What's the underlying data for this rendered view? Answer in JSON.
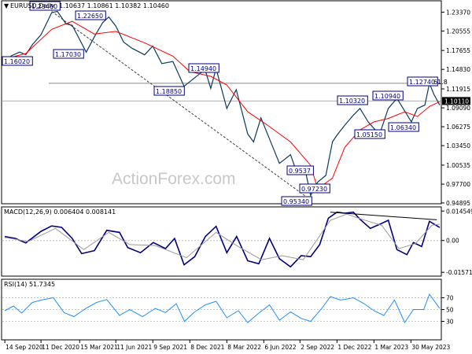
{
  "chart_data": [
    {
      "panel": "price",
      "type": "line",
      "header": {
        "symbol": "EURUSD,Daily",
        "ohlc": "1.10637 1.10861 1.10382 1.10460",
        "arrow": "▼"
      },
      "watermark": "ActionForex.com",
      "y_ticks": [
        "1.23370",
        "1.20555",
        "1.17655",
        "1.14830",
        "1.11915",
        "1.09090",
        "1.06275",
        "1.03450",
        "1.00535",
        "0.97700",
        "0.94895"
      ],
      "y_range": [
        0.9489,
        1.2495
      ],
      "current_price": "1.10110",
      "horizontal_level": 1.1275,
      "fib_label": "61.8",
      "annotations": [
        "1.23480",
        "1.22650",
        "1.17030",
        "1.18850",
        "1.14940",
        "1.10320",
        "1.10940",
        "1.12740",
        "1.05150",
        "1.06340",
        "0.95340",
        "0.97230",
        "0.9537",
        "1.16020"
      ],
      "x_dates": [
        "14 Sep 2020",
        "11 Dec 2020",
        "15 Mar 2021",
        "11 Jun 2021",
        "9 Sep 2021",
        "8 Dec 2021",
        "8 Mar 2022",
        "6 Jun 2022",
        "2 Sep 2022",
        "1 Dec 2022",
        "1 Mar 2023",
        "30 May 2023"
      ],
      "series": [
        {
          "name": "EURUSD,Daily",
          "kind": "close",
          "color": "#0b3a5e",
          "x": [
            "2020-09-14",
            "2020-10-01",
            "2020-10-20",
            "2020-11-04",
            "2020-11-20",
            "2020-12-11",
            "2021-01-06",
            "2021-01-20",
            "2021-02-10",
            "2021-02-25",
            "2021-03-15",
            "2021-03-31",
            "2021-04-20",
            "2021-05-10",
            "2021-05-25",
            "2021-06-11",
            "2021-06-30",
            "2021-07-20",
            "2021-08-20",
            "2021-09-09",
            "2021-10-01",
            "2021-10-28",
            "2021-11-24",
            "2021-12-08",
            "2022-01-14",
            "2022-01-28",
            "2022-02-10",
            "2022-03-08",
            "2022-03-31",
            "2022-04-28",
            "2022-05-12",
            "2022-05-30",
            "2022-06-15",
            "2022-07-14",
            "2022-08-10",
            "2022-08-25",
            "2022-09-14",
            "2022-09-28",
            "2022-10-15",
            "2022-11-04",
            "2022-11-20",
            "2022-12-01",
            "2022-12-20",
            "2023-01-10",
            "2023-01-26",
            "2023-02-15",
            "2023-03-01",
            "2023-03-15",
            "2023-04-05",
            "2023-04-26",
            "2023-05-15",
            "2023-05-31",
            "2023-06-15",
            "2023-07-03",
            "2023-07-14",
            "2023-07-25",
            "2023-08-08"
          ],
          "y": [
            1.1602,
            1.169,
            1.174,
            1.1703,
            1.185,
            1.2,
            1.233,
            1.2348,
            1.216,
            1.214,
            1.193,
            1.174,
            1.197,
            1.218,
            1.2265,
            1.213,
            1.189,
            1.18,
            1.17,
            1.183,
            1.157,
            1.16,
            1.123,
            1.13,
            1.148,
            1.12,
            1.1494,
            1.09,
            1.118,
            1.052,
            1.04,
            1.076,
            1.052,
            1.008,
            1.021,
            0.995,
            1.0,
            0.96,
            0.98,
            0.99,
            1.04,
            1.05,
            1.065,
            1.08,
            1.09,
            1.07,
            1.06,
            1.052,
            1.09,
            1.105,
            1.086,
            1.07,
            1.09,
            1.095,
            1.1274,
            1.111,
            1.095
          ]
        },
        {
          "name": "",
          "kind": "moving-average",
          "color": "#ff0000",
          "x": [
            "2020-09-14",
            "2020-11-04",
            "2021-01-06",
            "2021-02-25",
            "2021-04-20",
            "2021-06-11",
            "2021-08-20",
            "2021-10-28",
            "2021-12-08",
            "2022-01-28",
            "2022-03-08",
            "2022-04-28",
            "2022-06-15",
            "2022-08-10",
            "2022-09-28",
            "2022-10-15",
            "2022-11-20",
            "2022-12-20",
            "2023-01-26",
            "2023-03-01",
            "2023-04-05",
            "2023-05-15",
            "2023-06-15",
            "2023-07-14",
            "2023-08-08"
          ],
          "y": [
            1.164,
            1.172,
            1.208,
            1.22,
            1.201,
            1.205,
            1.188,
            1.168,
            1.145,
            1.138,
            1.125,
            1.085,
            1.065,
            1.04,
            1.005,
            0.97,
            0.986,
            1.032,
            1.058,
            1.07,
            1.075,
            1.085,
            1.078,
            1.093,
            1.1
          ]
        },
        {
          "name": "",
          "kind": "trendline",
          "color": "#404040",
          "dashed": true,
          "x": [
            "2021-01-06",
            "2022-09-28"
          ],
          "y": [
            1.2348,
            0.9534
          ]
        }
      ]
    },
    {
      "panel": "macd",
      "type": "line",
      "title": "MACD(12,26,9) 0.006404 0.008141",
      "y_ticks": [
        "0.014549",
        "0.00",
        "-0.015712"
      ],
      "y_range": [
        -0.0172,
        0.0162
      ],
      "series": [
        {
          "name": "",
          "kind": "macd",
          "color": "#000080",
          "x": [
            "2020-09-14",
            "2020-10-10",
            "2020-11-04",
            "2020-12-11",
            "2021-01-06",
            "2021-01-30",
            "2021-02-25",
            "2021-03-20",
            "2021-04-20",
            "2021-05-20",
            "2021-06-20",
            "2021-07-10",
            "2021-08-10",
            "2021-09-10",
            "2021-10-10",
            "2021-11-01",
            "2021-11-24",
            "2021-12-20",
            "2022-01-15",
            "2022-02-10",
            "2022-03-08",
            "2022-04-01",
            "2022-04-28",
            "2022-05-25",
            "2022-06-20",
            "2022-07-14",
            "2022-08-10",
            "2022-09-05",
            "2022-09-28",
            "2022-10-20",
            "2022-11-10",
            "2022-12-01",
            "2022-12-20",
            "2023-01-10",
            "2023-01-26",
            "2023-02-20",
            "2023-03-15",
            "2023-04-05",
            "2023-04-26",
            "2023-05-20",
            "2023-06-05",
            "2023-06-25",
            "2023-07-14",
            "2023-08-08"
          ],
          "y": [
            0.002,
            0.001,
            -0.0012,
            0.0045,
            0.0072,
            0.0065,
            0.001,
            -0.0065,
            -0.005,
            0.005,
            0.004,
            -0.0035,
            -0.006,
            -0.001,
            -0.004,
            0.001,
            -0.012,
            -0.008,
            0.002,
            0.007,
            -0.006,
            0.002,
            -0.01,
            -0.0115,
            0.001,
            -0.009,
            -0.013,
            -0.0075,
            -0.008,
            -0.002,
            0.011,
            0.014,
            0.0135,
            0.014,
            0.0105,
            0.006,
            0.008,
            0.01,
            -0.0045,
            -0.007,
            -0.001,
            -0.003,
            0.0095,
            0.0064
          ]
        },
        {
          "name": "",
          "kind": "signal",
          "color": "#9a9a9a",
          "x": [
            "2020-09-14",
            "2020-11-10",
            "2021-01-15",
            "2021-03-25",
            "2021-05-25",
            "2021-07-15",
            "2021-09-15",
            "2021-11-30",
            "2022-02-10",
            "2022-04-05",
            "2022-06-01",
            "2022-07-20",
            "2022-09-10",
            "2022-11-15",
            "2022-12-25",
            "2023-01-30",
            "2023-03-20",
            "2023-05-01",
            "2023-06-10",
            "2023-07-20",
            "2023-08-08"
          ],
          "y": [
            0.0015,
            -0.0005,
            0.006,
            -0.0045,
            0.004,
            -0.002,
            -0.0025,
            -0.0085,
            0.004,
            -0.003,
            -0.0095,
            -0.0075,
            -0.0095,
            0.01,
            0.013,
            0.0105,
            0.0075,
            -0.004,
            -0.0015,
            0.0075,
            0.0081
          ]
        },
        {
          "name": "",
          "kind": "trendline",
          "color": "#000000",
          "x": [
            "2022-11-15",
            "2023-08-01"
          ],
          "y": [
            0.014,
            0.0102
          ]
        }
      ]
    },
    {
      "panel": "rsi",
      "type": "line",
      "title": "RSI(14) 51.7345",
      "y_ticks": [
        "70",
        "50",
        "30"
      ],
      "y_range": [
        0,
        100
      ],
      "series": [
        {
          "name": "",
          "kind": "rsi",
          "color": "#1e90ff",
          "x": [
            "2020-09-14",
            "2020-10-05",
            "2020-10-25",
            "2020-11-20",
            "2020-12-11",
            "2021-01-10",
            "2021-02-05",
            "2021-03-01",
            "2021-03-30",
            "2021-04-25",
            "2021-05-20",
            "2021-06-20",
            "2021-07-15",
            "2021-08-15",
            "2021-09-15",
            "2021-10-10",
            "2021-11-05",
            "2021-11-25",
            "2021-12-20",
            "2022-01-15",
            "2022-02-10",
            "2022-03-08",
            "2022-04-05",
            "2022-04-28",
            "2022-05-25",
            "2022-06-20",
            "2022-07-14",
            "2022-08-10",
            "2022-09-05",
            "2022-09-28",
            "2022-10-25",
            "2022-11-15",
            "2022-12-10",
            "2023-01-10",
            "2023-02-05",
            "2023-03-01",
            "2023-03-25",
            "2023-04-20",
            "2023-05-15",
            "2023-06-05",
            "2023-06-30",
            "2023-07-14",
            "2023-08-08"
          ],
          "y": [
            48,
            56,
            44,
            62,
            66,
            70,
            45,
            38,
            52,
            62,
            67,
            40,
            50,
            38,
            52,
            45,
            60,
            30,
            46,
            58,
            64,
            36,
            48,
            28,
            44,
            58,
            32,
            46,
            35,
            30,
            52,
            72,
            66,
            70,
            60,
            48,
            40,
            66,
            28,
            50,
            50,
            76,
            51.7
          ]
        }
      ]
    }
  ]
}
